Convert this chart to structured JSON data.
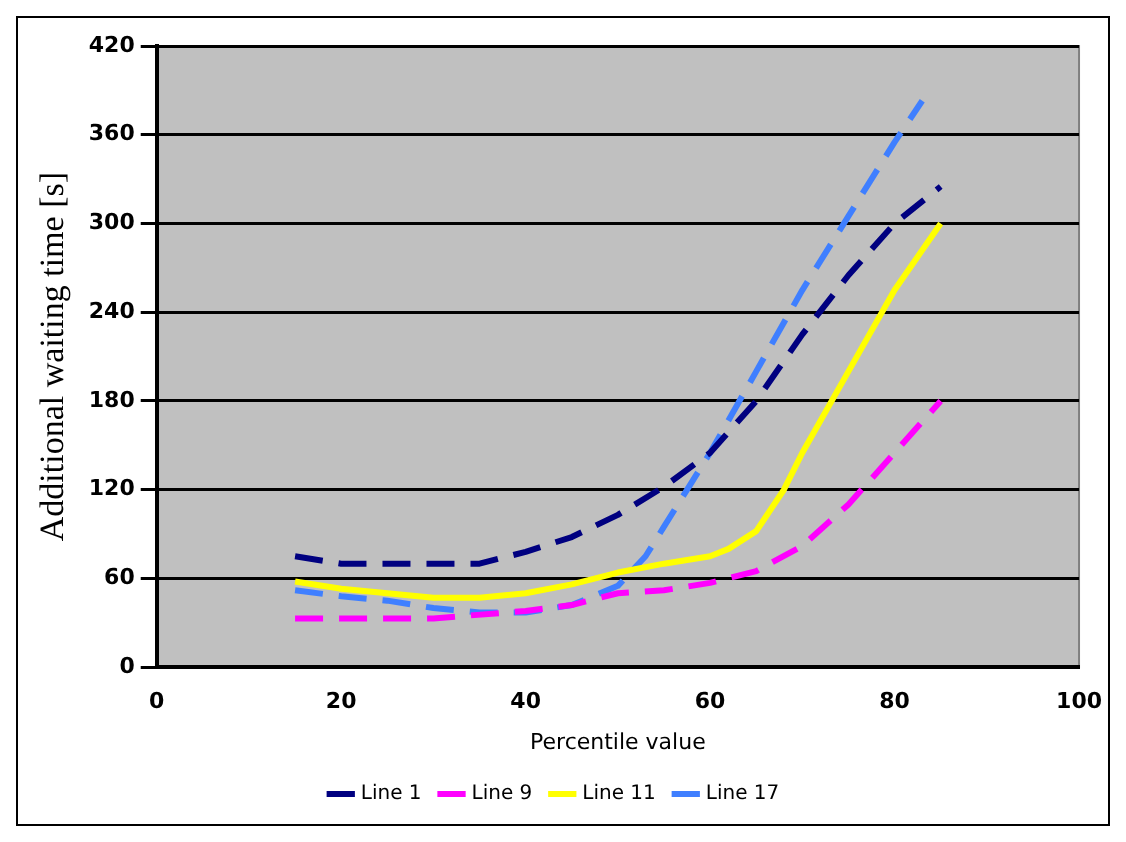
{
  "chart_data": {
    "type": "line",
    "xlabel": "Percentile value",
    "ylabel": "Additional waiting time [s]",
    "xlim": [
      0,
      100
    ],
    "xticks": [
      0,
      20,
      40,
      60,
      80,
      100
    ],
    "ylim": [
      0,
      420
    ],
    "yticks": [
      0,
      60,
      120,
      180,
      240,
      300,
      360,
      420
    ],
    "grid": "y",
    "legend": "bottom",
    "marker": "none",
    "series": [
      {
        "name": "Line 1",
        "color": "#000080",
        "line_style": "dashed",
        "x": [
          15,
          20,
          30,
          35,
          40,
          45,
          50,
          55,
          60,
          65,
          70,
          75,
          80,
          85
        ],
        "values": [
          75,
          70,
          70,
          70,
          78,
          88,
          103,
          122,
          145,
          180,
          225,
          265,
          300,
          325
        ]
      },
      {
        "name": "Line 9",
        "color": "#ff00ff",
        "line_style": "dashed",
        "x": [
          15,
          20,
          30,
          40,
          45,
          50,
          55,
          60,
          65,
          70,
          75,
          80,
          85
        ],
        "values": [
          33,
          33,
          33,
          38,
          42,
          50,
          52,
          57,
          65,
          82,
          110,
          145,
          180
        ]
      },
      {
        "name": "Line 11",
        "color": "#ffff00",
        "line_style": "solid",
        "x": [
          15,
          20,
          25,
          30,
          35,
          40,
          45,
          50,
          55,
          60,
          62,
          65,
          68,
          70,
          75,
          80,
          85
        ],
        "values": [
          58,
          53,
          50,
          47,
          47,
          50,
          56,
          64,
          70,
          75,
          80,
          92,
          120,
          145,
          200,
          255,
          300
        ]
      },
      {
        "name": "Line 17",
        "color": "#3f7fff",
        "line_style": "dashed",
        "x": [
          15,
          20,
          25,
          30,
          35,
          40,
          45,
          50,
          53,
          55,
          58,
          60,
          65,
          70,
          75,
          80,
          83
        ],
        "values": [
          52,
          48,
          45,
          40,
          37,
          37,
          42,
          55,
          75,
          95,
          125,
          145,
          200,
          255,
          305,
          355,
          383
        ]
      }
    ]
  }
}
